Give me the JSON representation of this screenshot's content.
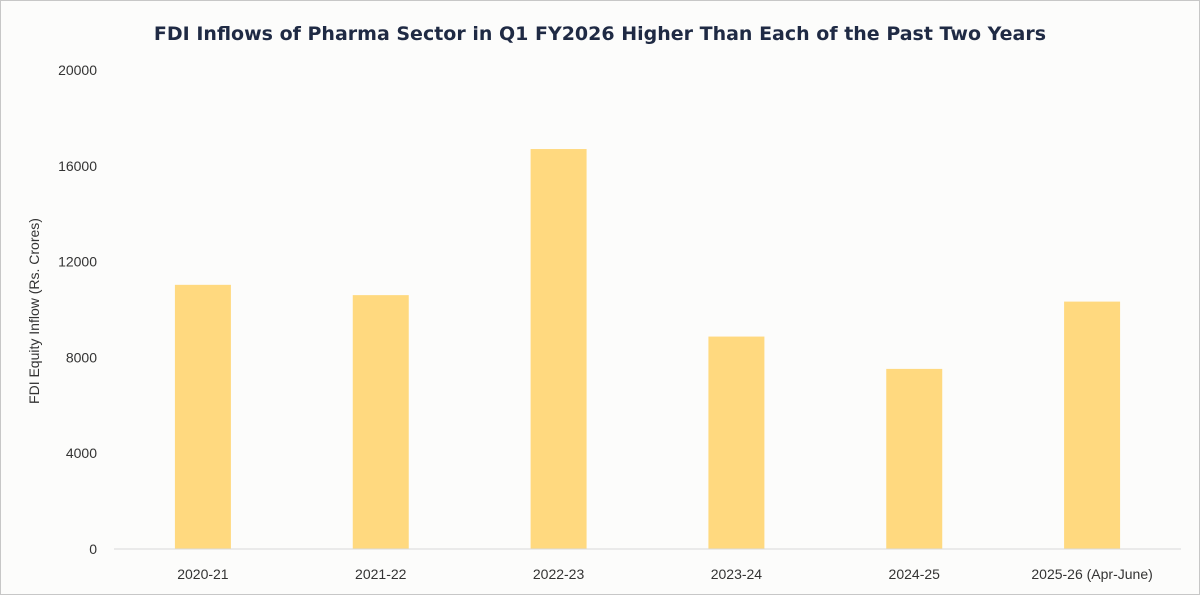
{
  "chart_data": {
    "type": "bar",
    "title": "FDI Inflows of Pharma Sector in Q1 FY2026 Higher Than Each of the Past Two Years",
    "xlabel": "",
    "ylabel": "FDI Equity Inflow (Rs. Crores)",
    "categories": [
      "2020-21",
      "2021-22",
      "2022-23",
      "2023-24",
      "2024-25",
      "2025-26 (Apr-June)"
    ],
    "values": [
      11030,
      10600,
      16700,
      8870,
      7520,
      10330
    ],
    "ylim": [
      0,
      20000
    ],
    "yticks": [
      "0",
      "4000",
      "8000",
      "12000",
      "16000",
      "20000"
    ],
    "grid": false,
    "legend": "none",
    "colors": {
      "bar": "#ffd97f",
      "axis": "#d9d9d9",
      "title": "#1f2a44",
      "text": "#333333"
    }
  }
}
